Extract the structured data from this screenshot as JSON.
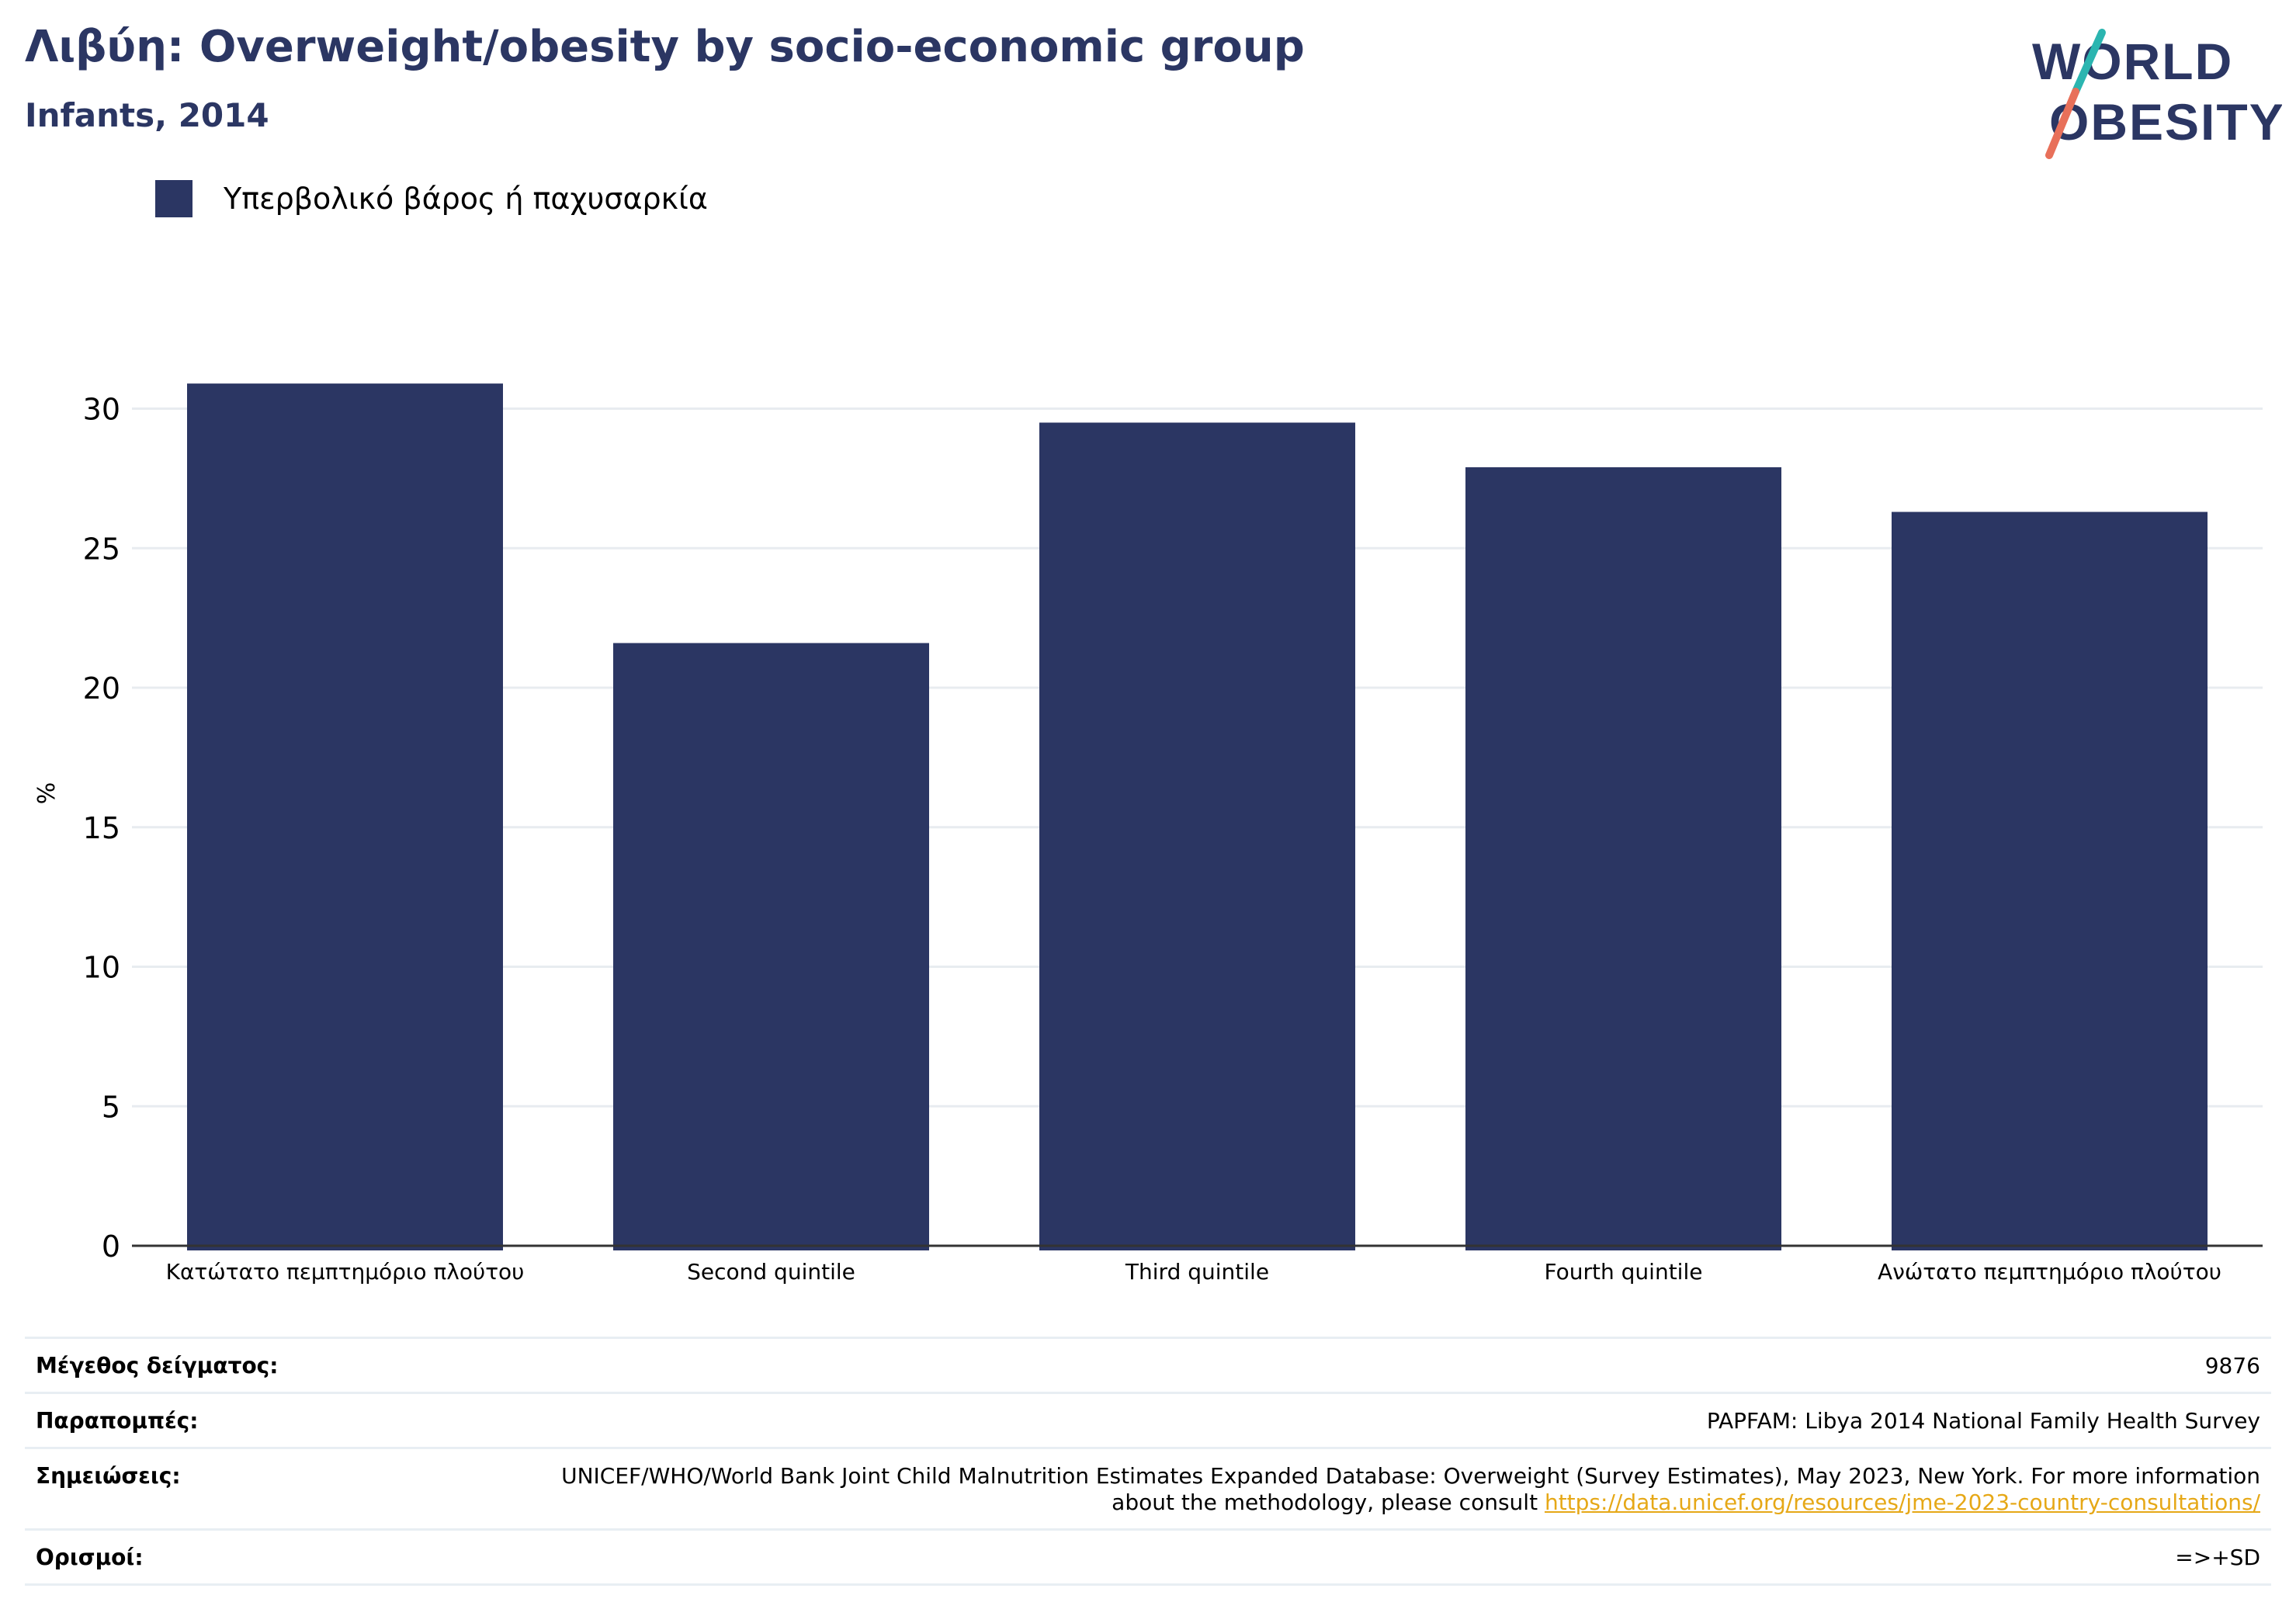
{
  "header": {
    "title": "Λιβύη: Overweight/obesity by socio-economic group",
    "subtitle": "Infants, 2014"
  },
  "logo": {
    "line1": "WORLD",
    "line2": "OBESITY"
  },
  "colors": {
    "bar": "#2b3663",
    "title": "#2b3663",
    "grid": "#e8ecf0",
    "link": "#e6a817",
    "logo_teal": "#2bb5b0",
    "logo_coral": "#e8705a"
  },
  "chart_data": {
    "type": "bar",
    "categories": [
      "Κατώτατο πεμπτημόριο πλούτου",
      "Second quintile",
      "Third quintile",
      "Fourth quintile",
      "Ανώτατο πεμπτημόριο πλούτου"
    ],
    "series": [
      {
        "name": "Υπερβολικό βάρος ή παχυσαρκία",
        "values": [
          30.9,
          21.6,
          29.5,
          27.9,
          26.3
        ]
      }
    ],
    "ylabel": "%",
    "ylim": [
      0,
      33
    ],
    "yticks": [
      0,
      5,
      10,
      15,
      20,
      25,
      30
    ],
    "grid": true,
    "legend": "top-left"
  },
  "meta": {
    "sample_label": "Μέγεθος δείγματος:",
    "sample_value": "9876",
    "refs_label": "Παραπομπές:",
    "refs_value": "PAPFAM: Libya 2014 National Family Health Survey",
    "notes_label": "Σημειώσεις:",
    "notes_value": "UNICEF/WHO/World Bank Joint Child Malnutrition Estimates Expanded Database: Overweight (Survey Estimates), May 2023, New York. For more information about the methodology, please consult",
    "notes_link": "https://data.unicef.org/resources/jme-2023-country-consultations/",
    "defs_label": "Ορισμοί:",
    "defs_value": "=>+SD"
  }
}
